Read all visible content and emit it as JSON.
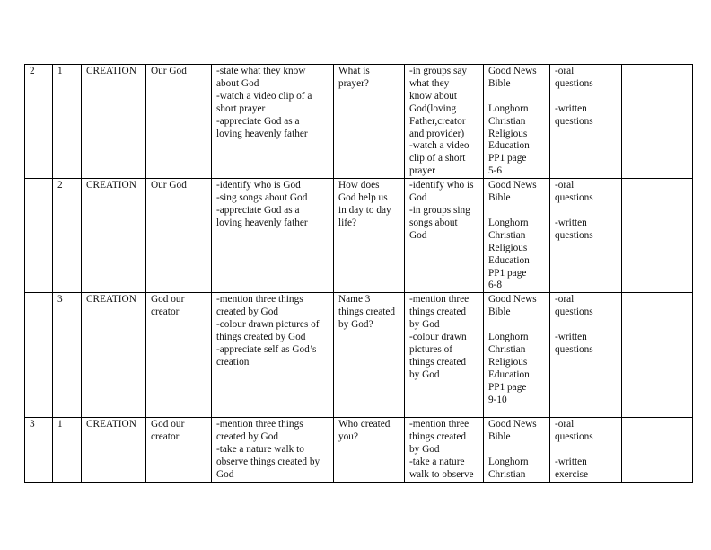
{
  "rows": [
    {
      "week": "2",
      "lesson": "1",
      "strand": "CREATION",
      "substrand": "Our God",
      "outcomes": "-state  what they know\nabout God\n-watch a video clip of a\nshort prayer\n-appreciate God as a\nloving heavenly father",
      "inquiry": "What is\nprayer?",
      "experiences": "-in groups say\nwhat they\nknow about\nGod(loving\nFather,creator\nand provider)\n-watch a video\nclip of a short\nprayer",
      "resources": "Good News\nBible\n\nLonghorn\nChristian\nReligious\nEducation\nPP1  page\n5-6",
      "assessment": "-oral\nquestions\n\n-written\nquestions",
      "remarks": ""
    },
    {
      "week": "",
      "lesson": "2",
      "strand": "CREATION",
      "substrand": "Our God",
      "outcomes": "-identify who is God\n-sing songs about God\n-appreciate God as a\nloving heavenly father",
      "inquiry": "How does\nGod help us\nin day to day\nlife?",
      "experiences": "-identify who is\nGod\n-in groups sing\nsongs about\nGod",
      "resources": "Good News\nBible\n\nLonghorn\nChristian\nReligious\nEducation\nPP1  page\n6-8",
      "assessment": "-oral\nquestions\n\n-written\nquestions",
      "remarks": ""
    },
    {
      "week": "",
      "lesson": "3",
      "strand": "CREATION",
      "substrand": "God our\ncreator",
      "outcomes": "-mention three things\ncreated by God\n-colour drawn pictures of\nthings created by God\n-appreciate self as  God’s\ncreation",
      "inquiry": "Name 3\nthings created\nby God?",
      "experiences": "-mention three\nthings created\nby God\n-colour drawn\npictures of\nthings created\nby God",
      "resources": "Good News\nBible\n\nLonghorn\nChristian\nReligious\nEducation\nPP1  page\n9-10",
      "assessment": "-oral\nquestions\n\n-written\nquestions",
      "remarks": ""
    },
    {
      "week": "3",
      "lesson": "1",
      "strand": "CREATION",
      "substrand": "God our\ncreator",
      "outcomes": "-mention three things\ncreated by God\n-take a nature walk to\nobserve things created by\nGod",
      "inquiry": "Who created\nyou?",
      "experiences": "-mention three\nthings created\nby God\n-take a nature\nwalk to observe",
      "resources": "Good News\nBible\n\nLonghorn\nChristian",
      "assessment": "-oral\nquestions\n\n-written\nexercise",
      "remarks": ""
    }
  ]
}
